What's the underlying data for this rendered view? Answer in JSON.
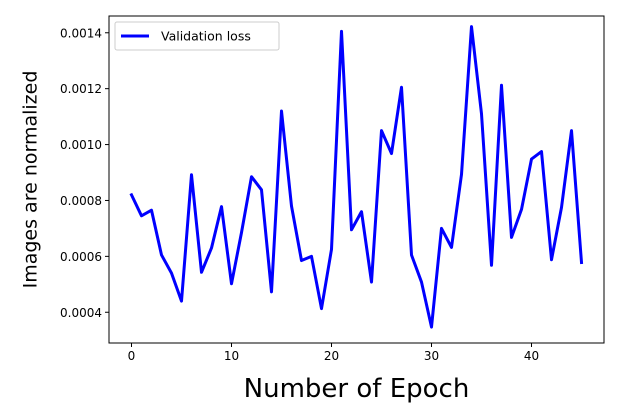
{
  "chart_data": {
    "type": "line",
    "title": "",
    "xlabel": "Number of Epoch",
    "ylabel": "Images are normalized",
    "xlim": [
      -2.25,
      47.25
    ],
    "ylim": [
      0.00029,
      0.00146
    ],
    "xticks": [
      0,
      10,
      20,
      30,
      40
    ],
    "xtick_labels": [
      "0",
      "10",
      "20",
      "30",
      "40"
    ],
    "yticks": [
      0.0004,
      0.0006,
      0.0008,
      0.001,
      0.0012,
      0.0014
    ],
    "ytick_labels": [
      "0.0004",
      "0.0006",
      "0.0008",
      "0.0010",
      "0.0012",
      "0.0014"
    ],
    "grid": false,
    "legend_position": "top-left",
    "series": [
      {
        "name": "Validation loss",
        "color": "#0000ff",
        "x": [
          0,
          1,
          2,
          3,
          4,
          5,
          6,
          7,
          8,
          9,
          10,
          11,
          12,
          13,
          14,
          15,
          16,
          17,
          18,
          19,
          20,
          21,
          22,
          23,
          24,
          25,
          26,
          27,
          28,
          29,
          30,
          31,
          32,
          33,
          34,
          35,
          36,
          37,
          38,
          39,
          40,
          41,
          42,
          43,
          44,
          45
        ],
        "y": [
          0.00082,
          0.000745,
          0.000765,
          0.000605,
          0.00054,
          0.00044,
          0.000892,
          0.000543,
          0.00063,
          0.000778,
          0.000502,
          0.000685,
          0.000885,
          0.000838,
          0.000473,
          0.00112,
          0.00078,
          0.000585,
          0.0006,
          0.000413,
          0.000625,
          0.001405,
          0.000695,
          0.00076,
          0.000508,
          0.00105,
          0.000968,
          0.001205,
          0.000605,
          0.000508,
          0.000347,
          0.0007,
          0.000632,
          0.000893,
          0.001422,
          0.00111,
          0.000568,
          0.001212,
          0.000668,
          0.000768,
          0.000948,
          0.000975,
          0.000588,
          0.000775,
          0.00105,
          0.000578
        ]
      }
    ]
  }
}
